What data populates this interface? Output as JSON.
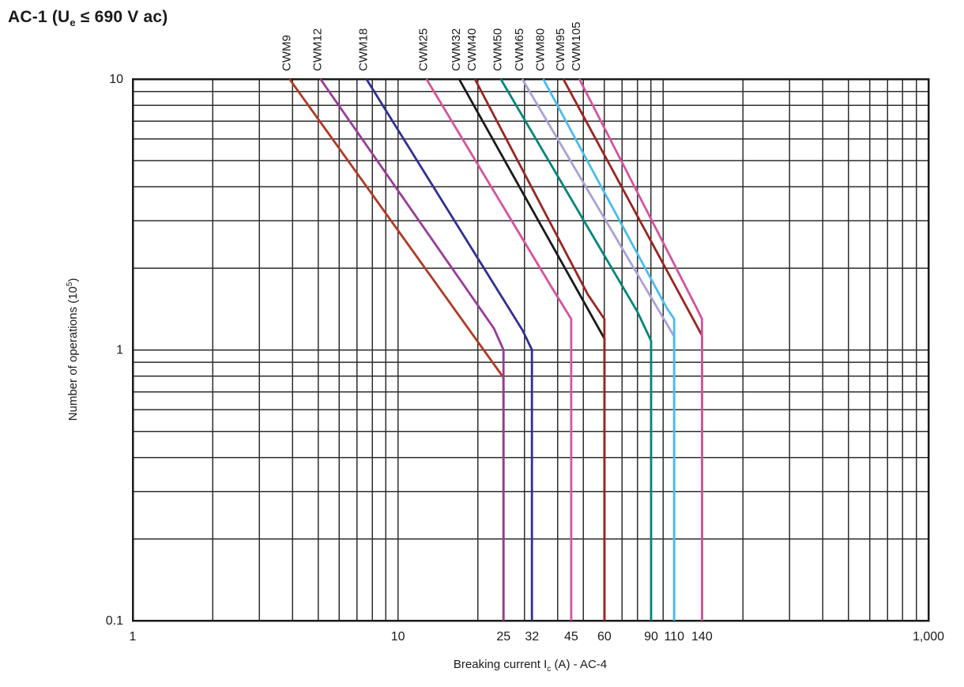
{
  "title": {
    "prefix": "AC-1 (U",
    "sub": "e",
    "suffix": " ≤ 690 V ac)"
  },
  "axis": {
    "x": {
      "pre": "Breaking current I",
      "sub": "c",
      "post": " (A) - AC-4"
    },
    "y": {
      "pre": "Number of operations (10",
      "sup": "5",
      "post": ")"
    }
  },
  "colors": {
    "grid": "#2e2e2e",
    "axis_frame": "#1a1a1a",
    "text": "#1a1a1a",
    "background": "#ffffff"
  },
  "chart_data": {
    "type": "line",
    "title": "AC-1 (Ue ≤ 690 V ac)",
    "xlabel": "Breaking current Ic (A) - AC-4",
    "ylabel": "Number of operations (10⁵)",
    "x_scale": "log",
    "y_scale": "log",
    "xlim": [
      1,
      1000
    ],
    "ylim": [
      0.1,
      10
    ],
    "grid": "on",
    "legend_position": "curve labels rotated above top axis at each curve start",
    "x_ticks": [
      {
        "label": "1",
        "value": 1
      },
      {
        "label": "10",
        "value": 10
      },
      {
        "label": "25",
        "value": 25
      },
      {
        "label": "32",
        "value": 32
      },
      {
        "label": "45",
        "value": 45
      },
      {
        "label": "60",
        "value": 60
      },
      {
        "label": "90",
        "value": 90
      },
      {
        "label": "110",
        "value": 110
      },
      {
        "label": "140",
        "value": 140
      },
      {
        "label": "1,000",
        "value": 1000
      }
    ],
    "y_ticks": [
      {
        "label": "10",
        "value": 10
      },
      {
        "label": "1",
        "value": 1
      },
      {
        "label": "0.1",
        "value": 0.1
      }
    ],
    "x_gridlines": [
      2,
      3,
      4,
      5,
      6,
      7,
      8,
      9,
      10,
      20,
      30,
      40,
      50,
      60,
      70,
      80,
      90,
      100,
      200,
      300,
      400,
      500,
      600,
      700,
      800,
      900
    ],
    "y_gridlines": [
      0.2,
      0.3,
      0.4,
      0.5,
      0.6,
      0.7,
      0.8,
      0.9,
      1,
      2,
      3,
      4,
      5,
      6,
      7,
      8,
      9
    ],
    "series": [
      {
        "name": "CWM9",
        "color": "#b03a26",
        "points": [
          [
            3.9,
            10
          ],
          [
            25,
            0.79
          ],
          [
            25,
            0.1
          ]
        ]
      },
      {
        "name": "CWM12",
        "color": "#993b97",
        "points": [
          [
            5.1,
            10
          ],
          [
            23,
            1.2
          ],
          [
            25,
            1.0
          ],
          [
            25,
            0.1
          ]
        ]
      },
      {
        "name": "CWM18",
        "color": "#2e3192",
        "points": [
          [
            7.6,
            10
          ],
          [
            29.5,
            1.18
          ],
          [
            32,
            1.0
          ],
          [
            32,
            0.1
          ]
        ]
      },
      {
        "name": "CWM25",
        "color": "#d4539e",
        "points": [
          [
            12.8,
            10
          ],
          [
            38,
            1.7
          ],
          [
            45,
            1.3
          ],
          [
            45,
            0.1
          ]
        ]
      },
      {
        "name": "CWM32",
        "color": "#1a1a1a",
        "points": [
          [
            17,
            10
          ],
          [
            60,
            1.1
          ],
          [
            60,
            0.1
          ]
        ]
      },
      {
        "name": "CWM40",
        "color": "#9b2420",
        "points": [
          [
            19.5,
            10
          ],
          [
            52,
            1.6
          ],
          [
            60,
            1.3
          ],
          [
            60,
            0.1
          ]
        ]
      },
      {
        "name": "CWM50",
        "color": "#00857c",
        "points": [
          [
            24.4,
            10
          ],
          [
            80,
            1.38
          ],
          [
            90,
            1.08
          ],
          [
            90,
            0.1
          ]
        ]
      },
      {
        "name": "CWM65",
        "color": "#a8a2d8",
        "points": [
          [
            29.4,
            10
          ],
          [
            110,
            1.12
          ],
          [
            110,
            0.1
          ]
        ]
      },
      {
        "name": "CWM80",
        "color": "#49bcee",
        "points": [
          [
            35.3,
            10
          ],
          [
            103,
            1.43
          ],
          [
            110,
            1.3
          ],
          [
            110,
            0.1
          ]
        ]
      },
      {
        "name": "CWM95",
        "color": "#9b2420",
        "points": [
          [
            42,
            10
          ],
          [
            140,
            1.13
          ],
          [
            140,
            0.1
          ]
        ]
      },
      {
        "name": "CWM105",
        "color": "#d4539e",
        "points": [
          [
            48.3,
            10
          ],
          [
            134,
            1.42
          ],
          [
            140,
            1.3
          ],
          [
            140,
            0.1
          ]
        ]
      }
    ]
  }
}
